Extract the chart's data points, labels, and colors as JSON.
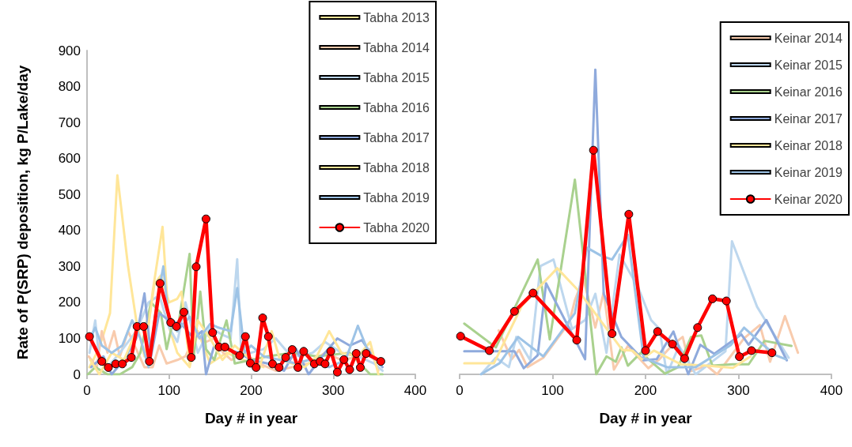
{
  "chart_data": [
    {
      "type": "line",
      "xlabel": "Day # in year",
      "ylabel": "Rate of P(SRP) deposition, kg P/Lake/day",
      "xlim": [
        0,
        400
      ],
      "xticks": [
        0,
        100,
        200,
        300,
        400
      ],
      "ylim": [
        0,
        900
      ],
      "yticks": [
        0,
        100,
        200,
        300,
        400,
        500,
        600,
        700,
        800,
        900
      ],
      "legend": "top right",
      "marker": "none",
      "line_style": "solid",
      "series": [
        {
          "name": "Tabha 2013",
          "color": "#ffe699",
          "x": [
            3,
            12,
            20,
            28,
            37,
            50,
            60,
            70,
            80,
            92,
            100,
            110,
            125,
            135,
            150,
            170,
            190,
            215
          ],
          "values": [
            20,
            60,
            110,
            170,
            553,
            300,
            150,
            50,
            230,
            410,
            130,
            60,
            20,
            120,
            30,
            60,
            40,
            20
          ]
        },
        {
          "name": "Tabha 2014",
          "color": "#f8cbad",
          "x": [
            2,
            12,
            18,
            25,
            33,
            40,
            50,
            58,
            70,
            80,
            88,
            97,
            110,
            120,
            132,
            145,
            155,
            166,
            176,
            190,
            210,
            230,
            250,
            270,
            290,
            310,
            335,
            345,
            355
          ],
          "values": [
            50,
            20,
            120,
            60,
            120,
            50,
            120,
            80,
            20,
            20,
            80,
            30,
            40,
            50,
            110,
            90,
            100,
            60,
            40,
            60,
            30,
            10,
            20,
            30,
            60,
            40,
            50,
            70,
            10
          ]
        },
        {
          "name": "Tabha 2015",
          "color": "#bdd7ee",
          "x": [
            3,
            10,
            15,
            25,
            40,
            60,
            75,
            88,
            100,
            110,
            120,
            135,
            150,
            165,
            175,
            183,
            188,
            200,
            215,
            230,
            245,
            260,
            275,
            290,
            310,
            330,
            350,
            360
          ],
          "values": [
            60,
            150,
            40,
            20,
            60,
            120,
            200,
            220,
            130,
            90,
            200,
            60,
            130,
            110,
            100,
            320,
            50,
            60,
            70,
            100,
            60,
            50,
            60,
            90,
            60,
            50,
            30,
            10
          ]
        },
        {
          "name": "Tabha 2016",
          "color": "#a9d18e",
          "x": [
            1,
            10,
            25,
            40,
            55,
            65,
            78,
            90,
            97,
            105,
            110,
            125,
            130,
            138,
            145,
            155,
            170,
            180,
            200,
            220,
            250,
            280,
            320,
            345,
            360
          ],
          "values": [
            0,
            20,
            0,
            0,
            20,
            60,
            200,
            170,
            70,
            150,
            120,
            335,
            50,
            230,
            70,
            40,
            150,
            30,
            40,
            50,
            60,
            50,
            60,
            0,
            0
          ]
        },
        {
          "name": "Tabha 2017",
          "color": "#8faadc",
          "x": [
            5,
            20,
            30,
            45,
            60,
            70,
            78,
            88,
            100,
            115,
            130,
            140,
            145,
            155,
            170,
            185,
            200,
            220,
            240,
            255,
            270,
            290,
            305,
            320,
            335,
            345,
            360
          ],
          "values": [
            20,
            50,
            0,
            40,
            100,
            225,
            50,
            170,
            150,
            140,
            100,
            120,
            0,
            80,
            70,
            60,
            40,
            30,
            10,
            70,
            0,
            60,
            100,
            80,
            95,
            60,
            20
          ]
        },
        {
          "name": "Tabha 2018",
          "color": "#ffe699",
          "x": [
            4,
            15,
            30,
            45,
            60,
            75,
            82,
            90,
            100,
            110,
            115,
            125,
            135,
            150,
            165,
            180,
            195,
            210,
            225,
            235,
            250,
            265,
            280,
            295,
            310,
            330,
            345,
            355
          ],
          "values": [
            40,
            0,
            60,
            40,
            120,
            140,
            250,
            275,
            200,
            210,
            230,
            30,
            150,
            100,
            40,
            80,
            50,
            20,
            120,
            40,
            30,
            20,
            50,
            120,
            60,
            50,
            90,
            0
          ]
        },
        {
          "name": "Tabha 2019",
          "color": "#9dc3e6",
          "x": [
            4,
            10,
            18,
            30,
            43,
            55,
            65,
            75,
            85,
            93,
            100,
            110,
            125,
            137,
            150,
            160,
            175,
            183,
            192,
            200,
            215,
            235,
            255,
            270,
            295,
            315,
            330,
            345,
            360
          ],
          "values": [
            100,
            130,
            80,
            60,
            80,
            150,
            100,
            20,
            200,
            300,
            140,
            120,
            160,
            100,
            140,
            130,
            120,
            240,
            60,
            80,
            50,
            40,
            30,
            40,
            20,
            40,
            135,
            50,
            30
          ]
        },
        {
          "name": "Tabha 2020",
          "color": "#ff0000",
          "marker": "circle",
          "x": [
            3,
            18,
            26,
            35,
            43,
            54,
            61,
            69,
            76,
            89,
            102,
            109,
            118,
            127,
            133,
            145,
            153,
            161,
            168,
            186,
            193,
            199,
            206,
            214,
            221,
            226,
            234,
            242,
            250,
            257,
            264,
            277,
            284,
            290,
            297,
            305,
            313,
            320,
            328,
            333,
            340,
            358
          ],
          "values": [
            105,
            36,
            19,
            29,
            29,
            47,
            133,
            133,
            36,
            253,
            144,
            133,
            173,
            47,
            299,
            432,
            116,
            76,
            76,
            52,
            105,
            31,
            19,
            157,
            105,
            29,
            19,
            47,
            69,
            19,
            64,
            29,
            36,
            29,
            64,
            6,
            41,
            13,
            58,
            19,
            58,
            36
          ]
        }
      ]
    },
    {
      "type": "line",
      "xlabel": "Day # in year",
      "xlim": [
        0,
        400
      ],
      "xticks": [
        0,
        100,
        200,
        300,
        400
      ],
      "ylim": [
        0,
        900
      ],
      "yticks": [
        0,
        100,
        200,
        300,
        400,
        500,
        600,
        700,
        800,
        900
      ],
      "tick_labels": "x",
      "legend": "top right",
      "marker": "none",
      "line_style": "solid",
      "series": [
        {
          "name": "Keinar 2014",
          "color": "#f8cbad",
          "x": [
            42,
            56,
            64,
            73,
            90,
            118,
            124,
            133,
            141,
            146,
            155,
            166,
            181,
            203,
            215,
            229,
            240,
            249,
            266,
            277,
            306,
            323,
            334,
            350,
            364
          ],
          "values": [
            122,
            42,
            68,
            20,
            46,
            144,
            206,
            268,
            184,
            130,
            228,
            13,
            79,
            17,
            42,
            82,
            104,
            9,
            24,
            0,
            100,
            137,
            35,
            162,
            60
          ]
        },
        {
          "name": "Keinar 2015",
          "color": "#bdd7ee",
          "x": [
            23,
            39,
            53,
            61,
            76,
            87,
            101,
            121,
            135,
            146,
            158,
            172,
            192,
            206,
            215,
            223,
            236,
            254,
            286,
            293,
            320,
            331,
            354
          ],
          "values": [
            0,
            46,
            20,
            104,
            39,
            301,
            319,
            126,
            151,
            224,
            60,
            333,
            242,
            151,
            126,
            0,
            79,
            0,
            64,
            370,
            188,
            141,
            46
          ]
        },
        {
          "name": "Keinar 2016",
          "color": "#a9d18e",
          "x": [
            5,
            39,
            84,
            97,
            124,
            147,
            158,
            168,
            174,
            181,
            195,
            221,
            235,
            249,
            260,
            272,
            294,
            311,
            328,
            357
          ],
          "values": [
            141,
            75,
            319,
            97,
            541,
            0,
            50,
            35,
            75,
            24,
            60,
            2,
            20,
            104,
            108,
            24,
            28,
            28,
            93,
            79
          ]
        },
        {
          "name": "Keinar 2017",
          "color": "#8faadc",
          "x": [
            5,
            59,
            69,
            84,
            93,
            135,
            146,
            155,
            174,
            198,
            212,
            230,
            246,
            259,
            274,
            303,
            311,
            330,
            352
          ],
          "values": [
            64,
            64,
            17,
            53,
            253,
            42,
            847,
            224,
            104,
            39,
            42,
            119,
            0,
            82,
            57,
            111,
            82,
            151,
            39
          ]
        },
        {
          "name": "Keinar 2018",
          "color": "#ffe699",
          "x": [
            5,
            37,
            67,
            105,
            127,
            175,
            186,
            196,
            209,
            238,
            266,
            294,
            313
          ],
          "values": [
            31,
            31,
            191,
            295,
            235,
            68,
            66,
            42,
            66,
            28,
            24,
            18,
            50
          ]
        },
        {
          "name": "Keinar 2019",
          "color": "#9dc3e6",
          "x": [
            23,
            43,
            63,
            90,
            124,
            137,
            152,
            164,
            181,
            198,
            223,
            254,
            292,
            306,
            328,
            340,
            351
          ],
          "values": [
            0,
            31,
            104,
            50,
            170,
            352,
            330,
            319,
            388,
            46,
            20,
            20,
            82,
            130,
            79,
            53,
            42
          ]
        },
        {
          "name": "Keinar 2020",
          "color": "#ff0000",
          "marker": "circle",
          "x": [
            1,
            32,
            59,
            79,
            126,
            144,
            164,
            182,
            200,
            213,
            229,
            242,
            256,
            272,
            287,
            301,
            314,
            336
          ],
          "values": [
            106,
            66,
            175,
            226,
            95,
            623,
            113,
            445,
            66,
            119,
            84,
            44,
            130,
            210,
            204,
            49,
            66,
            60
          ]
        }
      ]
    }
  ]
}
